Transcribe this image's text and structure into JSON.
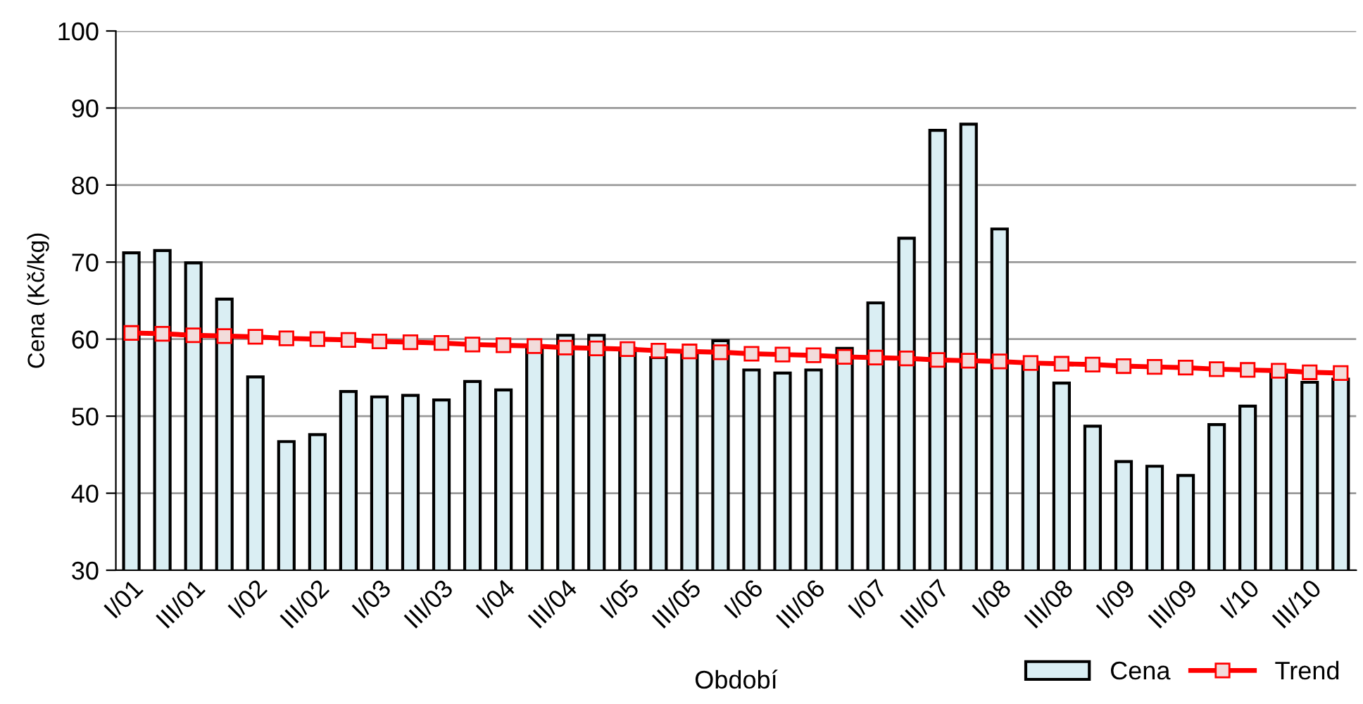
{
  "chart_data": {
    "type": "bar",
    "xlabel": "Období",
    "ylabel": "Cena (Kč/kg)",
    "categories": [
      "I/01",
      null,
      "III/01",
      null,
      "I/02",
      null,
      "III/02",
      null,
      "I/03",
      null,
      "III/03",
      null,
      "I/04",
      null,
      "III/04",
      null,
      "I/05",
      null,
      "III/05",
      null,
      "I/06",
      null,
      "III/06",
      null,
      "I/07",
      null,
      "III/07",
      null,
      "I/08",
      null,
      "III/08",
      null,
      "I/09",
      null,
      "III/09",
      null,
      "I/10",
      null,
      "III/10",
      null
    ],
    "series": [
      {
        "name": "Cena",
        "color": "#daeef3",
        "values": [
          71.2,
          71.5,
          69.9,
          65.2,
          55.1,
          46.7,
          47.6,
          53.2,
          52.5,
          52.7,
          52.1,
          54.5,
          53.4,
          59.0,
          60.5,
          60.5,
          58.8,
          57.6,
          58.0,
          59.8,
          56.0,
          55.6,
          56.0,
          58.8,
          64.7,
          73.1,
          87.1,
          87.9,
          74.3,
          56.7,
          54.3,
          48.7,
          44.1,
          43.5,
          42.3,
          48.9,
          51.3,
          55.5,
          54.4,
          54.8
        ]
      },
      {
        "name": "Trend",
        "type": "line",
        "color": "#ff0000",
        "marker": "square",
        "line_style": "solid",
        "values": [
          60.8,
          60.7,
          60.5,
          60.4,
          60.3,
          60.1,
          60.0,
          59.9,
          59.7,
          59.6,
          59.5,
          59.3,
          59.2,
          59.1,
          58.9,
          58.8,
          58.7,
          58.5,
          58.4,
          58.3,
          58.1,
          58.0,
          57.9,
          57.7,
          57.6,
          57.5,
          57.3,
          57.2,
          57.1,
          56.9,
          56.8,
          56.7,
          56.5,
          56.4,
          56.3,
          56.1,
          56.0,
          55.9,
          55.7,
          55.6
        ]
      }
    ],
    "ylim": [
      30,
      100
    ],
    "yticks": [
      30,
      40,
      50,
      60,
      70,
      80,
      90,
      100
    ],
    "grid": "y",
    "legend": "bottom right"
  }
}
